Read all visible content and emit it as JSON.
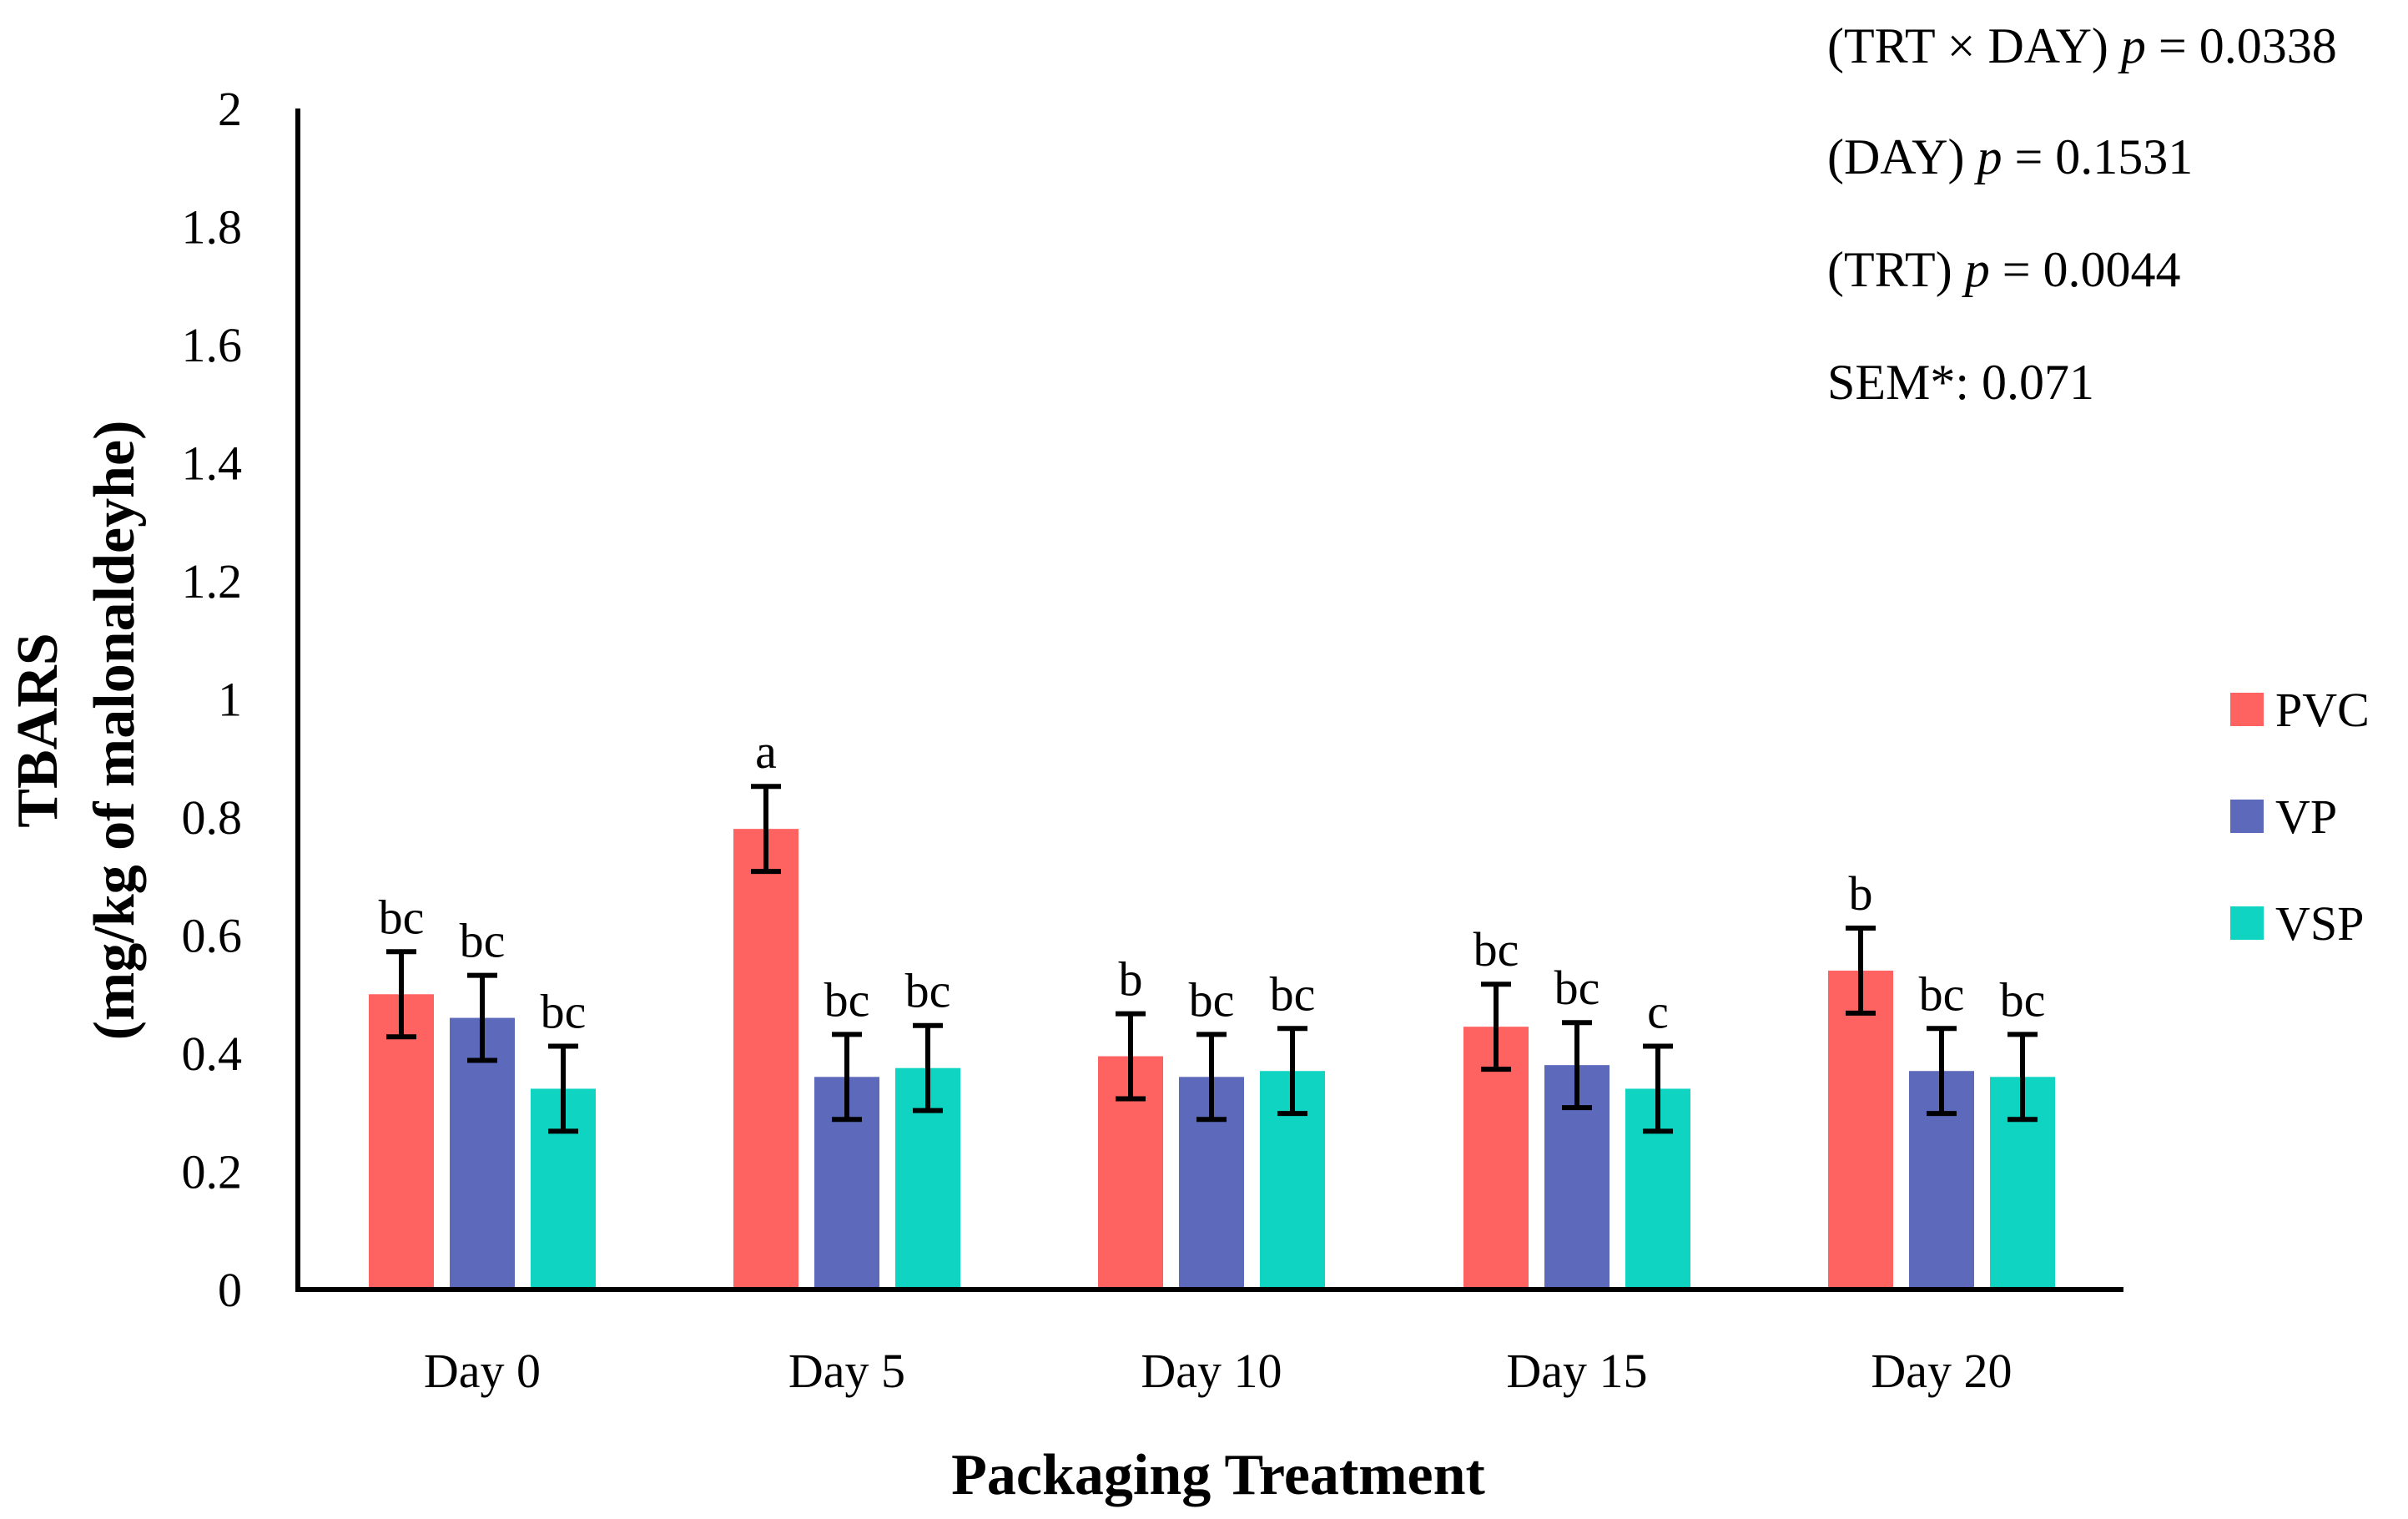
{
  "chart_data": {
    "type": "bar",
    "title": "",
    "xlabel": "Packaging Treatment",
    "ylabel": "TBARS",
    "ylabel_sub": "(mg/kg of malonaldeyhe)",
    "ylim": [
      0,
      2
    ],
    "yticks": [
      "0",
      "0.2",
      "0.4",
      "0.6",
      "0.8",
      "1",
      "1.2",
      "1.4",
      "1.6",
      "1.8",
      "2"
    ],
    "ytick_values": [
      0,
      0.2,
      0.4,
      0.6,
      0.8,
      1.0,
      1.2,
      1.4,
      1.6,
      1.8,
      2.0
    ],
    "grid": false,
    "legend_position": "right",
    "categories": [
      "Day 0",
      "Day 5",
      "Day 10",
      "Day 15",
      "Day 20"
    ],
    "series": [
      {
        "name": "PVC",
        "color": "#ff6361",
        "values": [
          0.5,
          0.78,
          0.395,
          0.445,
          0.54
        ],
        "errors": [
          0.072,
          0.072,
          0.072,
          0.072,
          0.072
        ],
        "labels": [
          "bc",
          "a",
          "b",
          "bc",
          "b"
        ]
      },
      {
        "name": "VP",
        "color": "#5d6abb",
        "values": [
          0.46,
          0.36,
          0.36,
          0.38,
          0.37
        ],
        "errors": [
          0.072,
          0.072,
          0.072,
          0.072,
          0.072
        ],
        "labels": [
          "bc",
          "bc",
          "bc",
          "bc",
          "bc"
        ]
      },
      {
        "name": "VSP",
        "color": "#0fd4c2",
        "values": [
          0.34,
          0.375,
          0.37,
          0.34,
          0.36
        ],
        "errors": [
          0.072,
          0.072,
          0.072,
          0.072,
          0.072
        ],
        "labels": [
          "bc",
          "bc",
          "bc",
          "c",
          "bc"
        ]
      }
    ],
    "annotations": [
      {
        "prefix": "(TRT × DAY) ",
        "p": "p",
        "suffix": " = 0.0338"
      },
      {
        "prefix": "(DAY) ",
        "p": "p",
        "suffix": " = 0.1531"
      },
      {
        "prefix": "(TRT) ",
        "p": "p",
        "suffix": " = 0.0044"
      },
      {
        "prefix": "SEM*: 0.071",
        "p": "",
        "suffix": ""
      }
    ]
  }
}
